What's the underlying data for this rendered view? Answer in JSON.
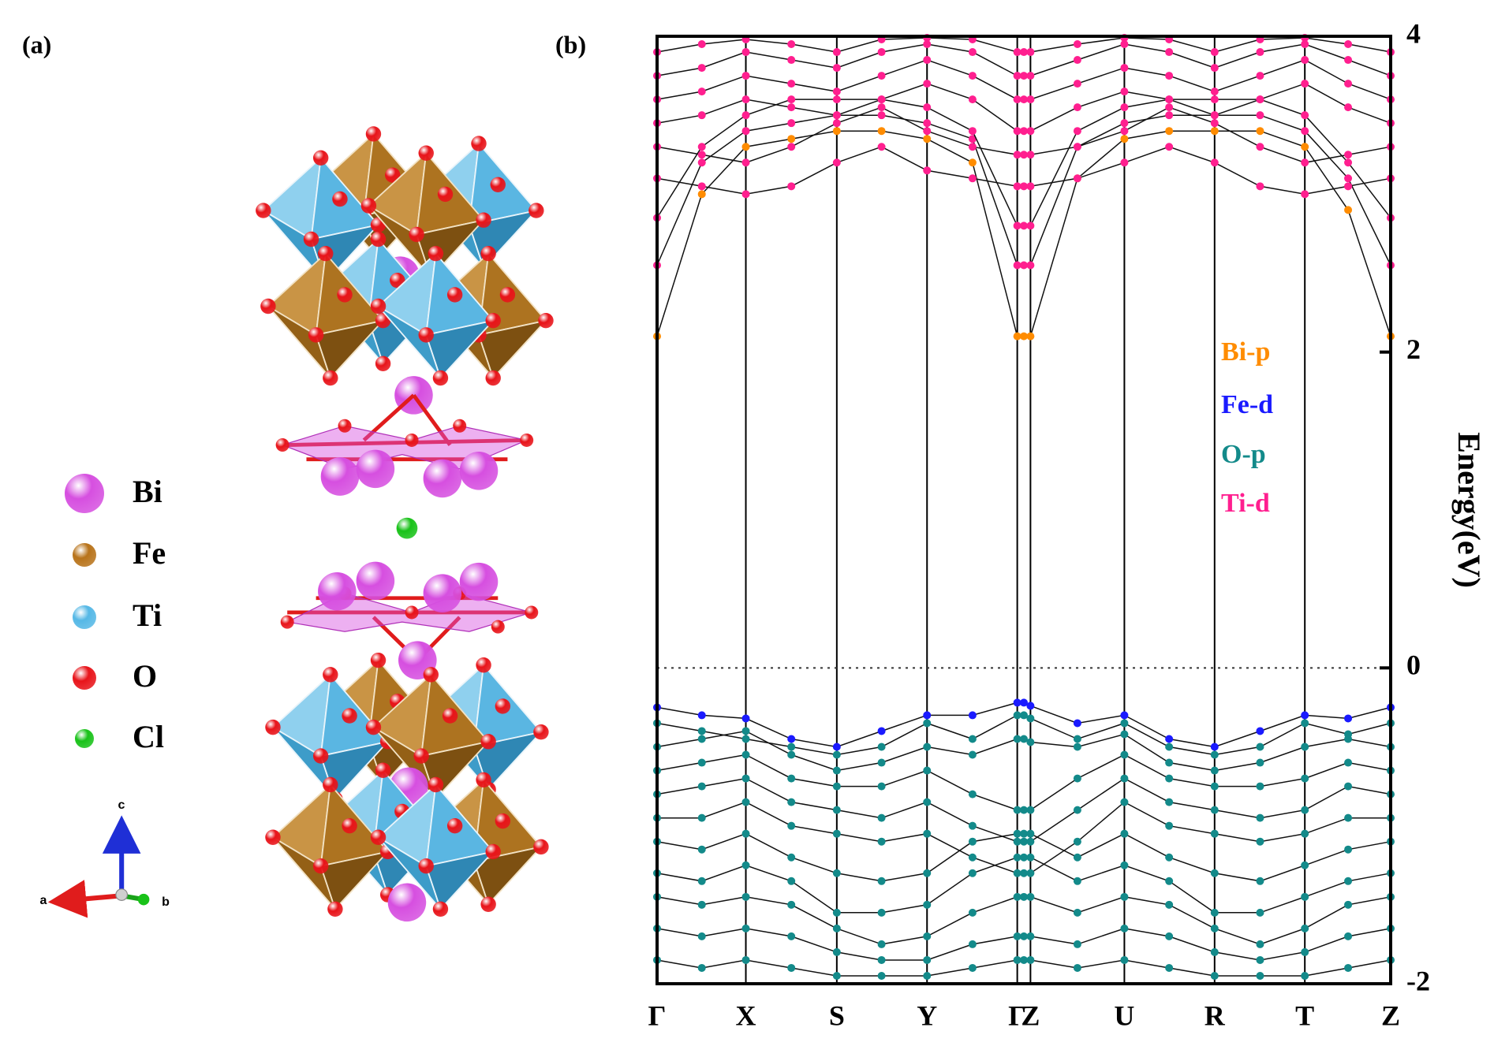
{
  "panel_a": {
    "label": "(a)",
    "legend": [
      {
        "name": "Bi",
        "color": "#d64fe0"
      },
      {
        "name": "Fe",
        "color": "#b8731a"
      },
      {
        "name": "Ti",
        "color": "#55b8e6"
      },
      {
        "name": "O",
        "color": "#e8141a"
      },
      {
        "name": "Cl",
        "color": "#19c219"
      }
    ],
    "axes": [
      "a",
      "b",
      "c"
    ]
  },
  "chart_data": {
    "type": "band",
    "panel_label": "(b)",
    "ylabel": "Energy(eV)",
    "ylim": [
      -2,
      4
    ],
    "yticks": [
      -2,
      0,
      2,
      4
    ],
    "xlim": [
      0,
      1
    ],
    "fermi_level": 0,
    "xticks": [
      {
        "value": 0,
        "label": "Γ"
      },
      {
        "value": 0.121,
        "label": "X"
      },
      {
        "value": 0.245,
        "label": "S"
      },
      {
        "value": 0.368,
        "label": "Y"
      },
      {
        "value": 0.491,
        "label": "Γ"
      },
      {
        "value": 0.509,
        "label": "Z"
      },
      {
        "value": 0.637,
        "label": "U"
      },
      {
        "value": 0.76,
        "label": "R"
      },
      {
        "value": 0.883,
        "label": "T"
      },
      {
        "value": 1,
        "label": "Z"
      }
    ],
    "legend": [
      {
        "name": "Bi-p",
        "color": "#ff8c00"
      },
      {
        "name": "Fe-d",
        "color": "#1a1aff"
      },
      {
        "name": "O-p",
        "color": "#138a8a"
      },
      {
        "name": "Ti-d",
        "color": "#ff1f8f"
      }
    ],
    "x": [
      0,
      0.061,
      0.121,
      0.183,
      0.245,
      0.306,
      0.368,
      0.43,
      0.491,
      0.5,
      0.509,
      0.573,
      0.637,
      0.698,
      0.76,
      0.822,
      0.883,
      0.942,
      1
    ],
    "bands": [
      {
        "color": "#ff8c00",
        "values": [
          2.1,
          3.0,
          3.3,
          3.35,
          3.4,
          3.4,
          3.35,
          3.2,
          2.1,
          2.1,
          2.1,
          3.1,
          3.35,
          3.4,
          3.4,
          3.4,
          3.3,
          2.9,
          2.1
        ]
      },
      {
        "color": "#ff1f8f",
        "values": [
          2.55,
          3.2,
          3.4,
          3.45,
          3.5,
          3.5,
          3.45,
          3.35,
          2.55,
          2.55,
          2.55,
          3.3,
          3.45,
          3.5,
          3.5,
          3.5,
          3.4,
          3.1,
          2.55
        ]
      },
      {
        "color": "#ff1f8f",
        "values": [
          2.85,
          3.3,
          3.5,
          3.6,
          3.6,
          3.6,
          3.55,
          3.4,
          2.8,
          2.8,
          2.8,
          3.4,
          3.55,
          3.6,
          3.6,
          3.6,
          3.5,
          3.2,
          2.85
        ]
      },
      {
        "color": "#ff1f8f",
        "values": [
          3.1,
          3.05,
          3.0,
          3.05,
          3.2,
          3.3,
          3.15,
          3.1,
          3.05,
          3.05,
          3.05,
          3.1,
          3.2,
          3.3,
          3.2,
          3.05,
          3.0,
          3.05,
          3.1
        ]
      },
      {
        "color": "#ff1f8f",
        "values": [
          3.3,
          3.25,
          3.2,
          3.3,
          3.45,
          3.55,
          3.4,
          3.3,
          3.25,
          3.25,
          3.25,
          3.3,
          3.4,
          3.55,
          3.45,
          3.3,
          3.2,
          3.25,
          3.3
        ]
      },
      {
        "color": "#ff1f8f",
        "values": [
          3.45,
          3.5,
          3.6,
          3.55,
          3.5,
          3.6,
          3.7,
          3.6,
          3.4,
          3.4,
          3.4,
          3.55,
          3.65,
          3.6,
          3.5,
          3.6,
          3.7,
          3.55,
          3.45
        ]
      },
      {
        "color": "#ff1f8f",
        "values": [
          3.6,
          3.65,
          3.75,
          3.7,
          3.65,
          3.75,
          3.85,
          3.75,
          3.6,
          3.6,
          3.6,
          3.7,
          3.8,
          3.75,
          3.65,
          3.75,
          3.85,
          3.7,
          3.6
        ]
      },
      {
        "color": "#ff1f8f",
        "values": [
          3.75,
          3.8,
          3.9,
          3.85,
          3.8,
          3.9,
          3.95,
          3.9,
          3.75,
          3.75,
          3.75,
          3.85,
          3.95,
          3.9,
          3.8,
          3.9,
          3.95,
          3.85,
          3.75
        ]
      },
      {
        "color": "#ff1f8f",
        "values": [
          3.9,
          3.95,
          3.98,
          3.95,
          3.9,
          3.98,
          3.99,
          3.98,
          3.9,
          3.9,
          3.9,
          3.95,
          3.99,
          3.98,
          3.9,
          3.98,
          3.99,
          3.95,
          3.9
        ]
      },
      {
        "color": "#1a1aff",
        "values": [
          -0.25,
          -0.3,
          -0.32,
          -0.45,
          -0.5,
          -0.4,
          -0.3,
          -0.3,
          -0.22,
          -0.22,
          -0.24,
          -0.35,
          -0.3,
          -0.45,
          -0.5,
          -0.4,
          -0.3,
          -0.32,
          -0.25
        ]
      },
      {
        "color": "#138a8a",
        "values": [
          -0.35,
          -0.4,
          -0.45,
          -0.5,
          -0.55,
          -0.5,
          -0.35,
          -0.45,
          -0.3,
          -0.3,
          -0.32,
          -0.45,
          -0.35,
          -0.5,
          -0.55,
          -0.5,
          -0.35,
          -0.42,
          -0.35
        ]
      },
      {
        "color": "#138a8a",
        "values": [
          -0.5,
          -0.45,
          -0.4,
          -0.55,
          -0.65,
          -0.6,
          -0.5,
          -0.55,
          -0.45,
          -0.45,
          -0.47,
          -0.5,
          -0.42,
          -0.6,
          -0.65,
          -0.6,
          -0.5,
          -0.45,
          -0.5
        ]
      },
      {
        "color": "#138a8a",
        "values": [
          -0.65,
          -0.6,
          -0.55,
          -0.7,
          -0.75,
          -0.75,
          -0.65,
          -0.8,
          -0.9,
          -0.9,
          -0.9,
          -0.7,
          -0.55,
          -0.7,
          -0.75,
          -0.75,
          -0.7,
          -0.6,
          -0.65
        ]
      },
      {
        "color": "#138a8a",
        "values": [
          -0.8,
          -0.75,
          -0.7,
          -0.85,
          -0.9,
          -0.95,
          -0.85,
          -1.0,
          -1.1,
          -1.1,
          -1.1,
          -0.9,
          -0.7,
          -0.85,
          -0.9,
          -0.95,
          -0.9,
          -0.75,
          -0.8
        ]
      },
      {
        "color": "#138a8a",
        "values": [
          -0.95,
          -0.95,
          -0.85,
          -1.0,
          -1.05,
          -1.1,
          -1.05,
          -1.2,
          -1.3,
          -1.3,
          -1.3,
          -1.1,
          -0.85,
          -1.0,
          -1.05,
          -1.1,
          -1.05,
          -0.95,
          -0.95
        ]
      },
      {
        "color": "#138a8a",
        "values": [
          -1.1,
          -1.15,
          -1.05,
          -1.2,
          -1.3,
          -1.35,
          -1.3,
          -1.1,
          -1.05,
          -1.05,
          -1.05,
          -1.2,
          -1.05,
          -1.2,
          -1.3,
          -1.35,
          -1.25,
          -1.15,
          -1.1
        ]
      },
      {
        "color": "#138a8a",
        "values": [
          -1.3,
          -1.35,
          -1.25,
          -1.35,
          -1.55,
          -1.55,
          -1.5,
          -1.3,
          -1.2,
          -1.2,
          -1.2,
          -1.35,
          -1.25,
          -1.35,
          -1.55,
          -1.55,
          -1.45,
          -1.35,
          -1.3
        ]
      },
      {
        "color": "#138a8a",
        "values": [
          -1.45,
          -1.5,
          -1.45,
          -1.5,
          -1.65,
          -1.75,
          -1.7,
          -1.55,
          -1.45,
          -1.45,
          -1.45,
          -1.55,
          -1.45,
          -1.5,
          -1.65,
          -1.75,
          -1.65,
          -1.5,
          -1.45
        ]
      },
      {
        "color": "#138a8a",
        "values": [
          -1.65,
          -1.7,
          -1.65,
          -1.7,
          -1.8,
          -1.85,
          -1.85,
          -1.75,
          -1.7,
          -1.7,
          -1.7,
          -1.75,
          -1.65,
          -1.7,
          -1.8,
          -1.85,
          -1.8,
          -1.7,
          -1.65
        ]
      },
      {
        "color": "#138a8a",
        "values": [
          -1.85,
          -1.9,
          -1.85,
          -1.9,
          -1.95,
          -1.95,
          -1.95,
          -1.9,
          -1.85,
          -1.85,
          -1.85,
          -1.9,
          -1.85,
          -1.9,
          -1.95,
          -1.95,
          -1.95,
          -1.9,
          -1.85
        ]
      }
    ]
  }
}
